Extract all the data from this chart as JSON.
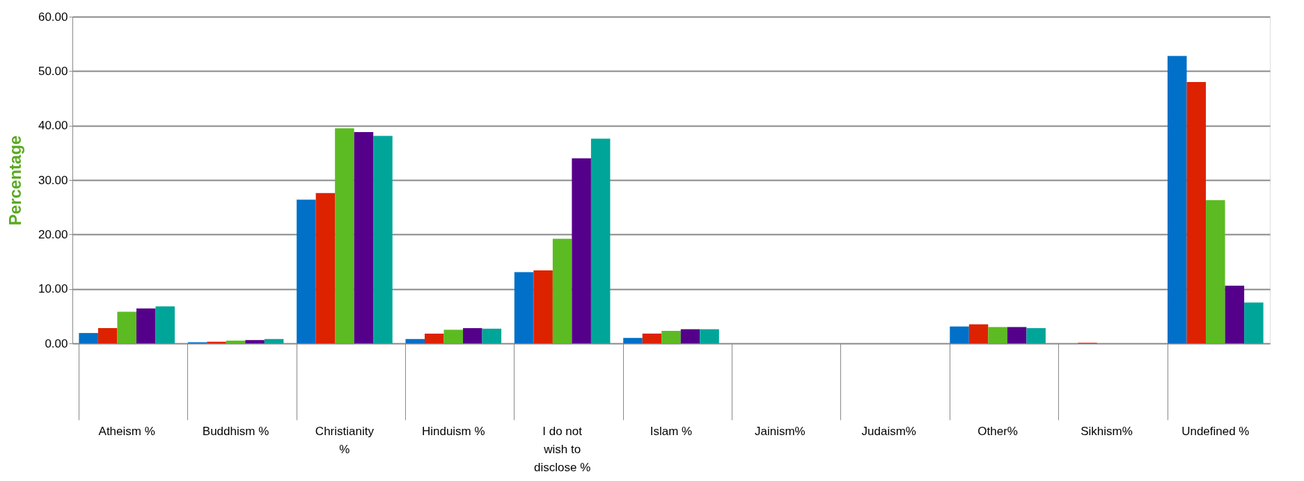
{
  "chart_data": {
    "type": "bar",
    "ylabel": "Percentage",
    "categories": [
      "Atheism %",
      "Buddhism %",
      "Christianity %",
      "Hinduism %",
      "I do not wish to disclose %",
      "Islam %",
      "Jainism%",
      "Judaism%",
      "Other%",
      "Sikhism%",
      "Undefined %"
    ],
    "series": [
      {
        "color": "#0070c8",
        "values": [
          1.9,
          0.2,
          26.4,
          0.8,
          13.1,
          1.0,
          0.0,
          0.0,
          3.1,
          0.0,
          52.8
        ]
      },
      {
        "color": "#dd2200",
        "values": [
          2.8,
          0.3,
          27.6,
          1.8,
          13.4,
          1.8,
          0.0,
          0.0,
          3.5,
          0.1,
          48.0
        ]
      },
      {
        "color": "#5cbb22",
        "values": [
          5.8,
          0.5,
          39.5,
          2.5,
          19.2,
          2.3,
          0.0,
          0.0,
          3.0,
          0.0,
          26.3
        ]
      },
      {
        "color": "#55008a",
        "values": [
          6.4,
          0.6,
          38.8,
          2.8,
          34.0,
          2.6,
          0.0,
          0.0,
          3.0,
          0.0,
          10.6
        ]
      },
      {
        "color": "#00a59a",
        "values": [
          6.8,
          0.8,
          38.1,
          2.7,
          37.6,
          2.6,
          0.0,
          0.0,
          2.8,
          0.0,
          7.5
        ]
      }
    ],
    "ylim": [
      0,
      60
    ],
    "yticks": [
      {
        "value": 0,
        "label": "0.00"
      },
      {
        "value": 10,
        "label": "10.00"
      },
      {
        "value": 20,
        "label": "20.00"
      },
      {
        "value": 30,
        "label": "30.00"
      },
      {
        "value": 40,
        "label": "40.00"
      },
      {
        "value": 50,
        "label": "50.00"
      },
      {
        "value": 60,
        "label": "60.00"
      }
    ],
    "grid": "y",
    "legend": false
  }
}
